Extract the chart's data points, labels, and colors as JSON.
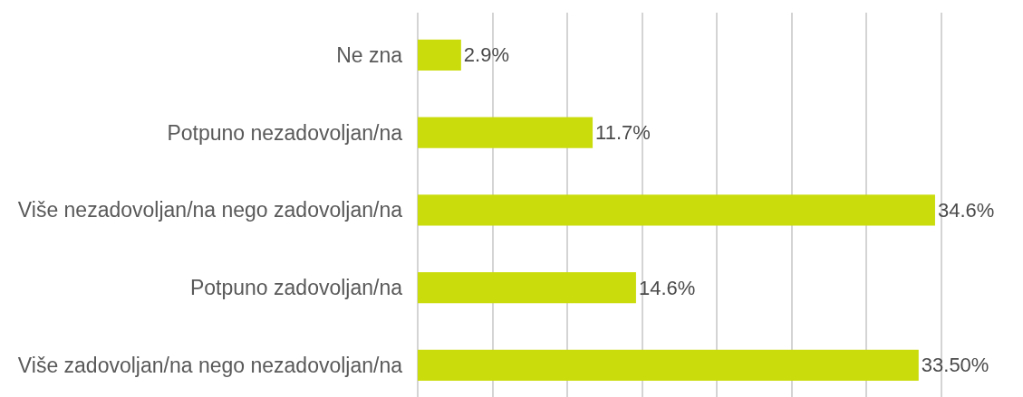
{
  "chart_data": {
    "type": "bar",
    "orientation": "horizontal",
    "categories": [
      "Ne zna",
      "Potpuno nezadovoljan/na",
      "Više nezadovoljan/na nego zadovoljan/na",
      "Potpuno zadovoljan/na",
      "Više zadovoljan/na nego nezadovoljan/na"
    ],
    "values": [
      2.9,
      11.7,
      34.6,
      14.6,
      33.5
    ],
    "value_labels": [
      "2.9%",
      "11.7%",
      "34.6%",
      "14.6%",
      "33.50%"
    ],
    "color": "#cadc0b",
    "grid": "x",
    "tick_labels": "y"
  }
}
